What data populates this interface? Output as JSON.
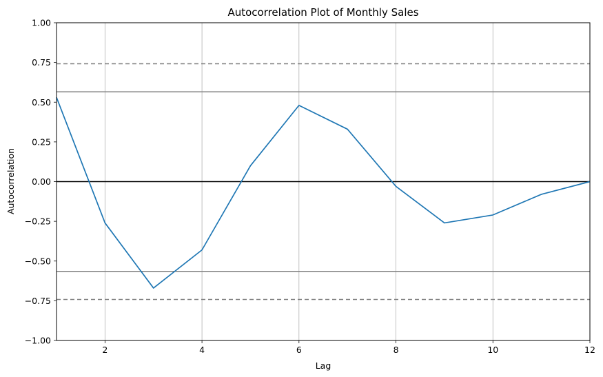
{
  "chart_data": {
    "type": "line",
    "title": "Autocorrelation Plot of Monthly Sales",
    "xlabel": "Lag",
    "ylabel": "Autocorrelation",
    "xlim": [
      1,
      12
    ],
    "ylim": [
      -1.0,
      1.0
    ],
    "x_ticks": [
      2,
      4,
      6,
      8,
      10,
      12
    ],
    "x_tick_labels": [
      "2",
      "4",
      "6",
      "8",
      "10",
      "12"
    ],
    "y_ticks": [
      -1.0,
      -0.75,
      -0.5,
      -0.25,
      0.0,
      0.25,
      0.5,
      0.75,
      1.0
    ],
    "y_tick_labels": [
      "−1.00",
      "−0.75",
      "−0.50",
      "−0.25",
      "0.00",
      "0.25",
      "0.50",
      "0.75",
      "1.00"
    ],
    "grid": "vertical",
    "series": [
      {
        "color": "#1f77b4",
        "x": [
          1,
          2,
          3,
          4,
          5,
          6,
          7,
          8,
          9,
          10,
          11,
          12
        ],
        "values": [
          0.53,
          -0.26,
          -0.67,
          -0.43,
          0.1,
          0.48,
          0.33,
          -0.03,
          -0.26,
          -0.21,
          -0.08,
          0.0
        ]
      }
    ],
    "reference_lines": [
      {
        "y": 0.0,
        "style": "solid",
        "color": "#000000"
      },
      {
        "y": 0.565,
        "style": "solid",
        "color": "#808080"
      },
      {
        "y": -0.565,
        "style": "solid",
        "color": "#808080"
      },
      {
        "y": 0.742,
        "style": "dashed",
        "color": "#808080"
      },
      {
        "y": -0.742,
        "style": "dashed",
        "color": "#808080"
      }
    ]
  }
}
